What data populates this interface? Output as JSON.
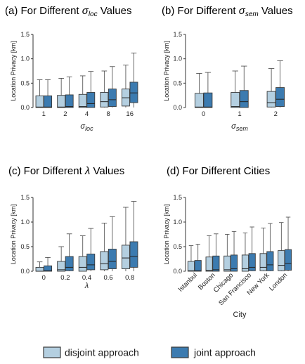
{
  "legend": {
    "disjoint_label": "disjoint approach",
    "joint_label": "joint approach",
    "disjoint_color": "#b4cfe0",
    "joint_color": "#3c7bb0",
    "edge_color": "#3a3a3a"
  },
  "chart_data": [
    {
      "type": "boxplot",
      "title": "(a) For Different σloc Values",
      "title_prefix": "(a) For Different ",
      "title_symbol": "σ",
      "title_sub": "loc",
      "title_suffix": " Values",
      "ylabel": "Location Privacy [km]",
      "xlabel": "σ",
      "xlabel_sub": "loc",
      "ylim": [
        0,
        1.5
      ],
      "yticks": [
        "0.0",
        "0.5",
        "1.0",
        "1.5"
      ],
      "categories": [
        "1",
        "2",
        "4",
        "8",
        "16"
      ],
      "series": [
        {
          "name": "disjoint approach",
          "boxes": [
            {
              "whislo": 0,
              "q1": 0,
              "med": 0.01,
              "q3": 0.24,
              "whishi": 0.57
            },
            {
              "whislo": 0,
              "q1": 0,
              "med": 0.01,
              "q3": 0.25,
              "whishi": 0.6
            },
            {
              "whislo": 0,
              "q1": 0,
              "med": 0.02,
              "q3": 0.27,
              "whishi": 0.65
            },
            {
              "whislo": 0,
              "q1": 0.01,
              "med": 0.12,
              "q3": 0.31,
              "whishi": 0.75
            },
            {
              "whislo": 0,
              "q1": 0.03,
              "med": 0.2,
              "q3": 0.38,
              "whishi": 0.87
            }
          ]
        },
        {
          "name": "joint approach",
          "boxes": [
            {
              "whislo": 0,
              "q1": 0,
              "med": 0.01,
              "q3": 0.24,
              "whishi": 0.57
            },
            {
              "whislo": 0,
              "q1": 0,
              "med": 0.02,
              "q3": 0.26,
              "whishi": 0.63
            },
            {
              "whislo": 0,
              "q1": 0,
              "med": 0.08,
              "q3": 0.31,
              "whishi": 0.74
            },
            {
              "whislo": 0,
              "q1": 0.02,
              "med": 0.16,
              "q3": 0.38,
              "whishi": 0.84
            },
            {
              "whislo": 0,
              "q1": 0.1,
              "med": 0.3,
              "q3": 0.52,
              "whishi": 1.12
            }
          ]
        }
      ]
    },
    {
      "type": "boxplot",
      "title": "(b) For Different σsem Values",
      "title_prefix": "(b) For Different ",
      "title_symbol": "σ",
      "title_sub": "sem",
      "title_suffix": " Values",
      "ylabel": "Location Privacy [km]",
      "xlabel": "σ",
      "xlabel_sub": "sem",
      "ylim": [
        0,
        1.5
      ],
      "yticks": [
        "0.0",
        "0.5",
        "1.0",
        "1.5"
      ],
      "categories": [
        "0",
        "1",
        "2"
      ],
      "series": [
        {
          "name": "disjoint approach",
          "boxes": [
            {
              "whislo": 0,
              "q1": 0,
              "med": 0.01,
              "q3": 0.29,
              "whishi": 0.7
            },
            {
              "whislo": 0,
              "q1": 0,
              "med": 0.02,
              "q3": 0.31,
              "whishi": 0.75
            },
            {
              "whislo": 0,
              "q1": 0.01,
              "med": 0.1,
              "q3": 0.33,
              "whishi": 0.8
            }
          ]
        },
        {
          "name": "joint approach",
          "boxes": [
            {
              "whislo": 0,
              "q1": 0,
              "med": 0.01,
              "q3": 0.3,
              "whishi": 0.72
            },
            {
              "whislo": 0,
              "q1": 0,
              "med": 0.12,
              "q3": 0.35,
              "whishi": 0.85
            },
            {
              "whislo": 0,
              "q1": 0.02,
              "med": 0.17,
              "q3": 0.41,
              "whishi": 0.96
            }
          ]
        }
      ]
    },
    {
      "type": "boxplot",
      "title": "(c) For Different λ Values",
      "title_prefix": "(c) For Different ",
      "title_symbol": "λ",
      "title_sub": "",
      "title_suffix": " Values",
      "ylabel": "Location Privacy [km]",
      "xlabel": "λ",
      "xlabel_sub": "",
      "ylim": [
        0,
        1.5
      ],
      "yticks": [
        "0.0",
        "0.5",
        "1.0",
        "1.5"
      ],
      "categories": [
        "0",
        "0.2",
        "0.4",
        "0.6",
        "0.8"
      ],
      "series": [
        {
          "name": "disjoint approach",
          "boxes": [
            {
              "whislo": 0,
              "q1": 0,
              "med": 0,
              "q3": 0.08,
              "whishi": 0.19
            },
            {
              "whislo": 0,
              "q1": 0,
              "med": 0.03,
              "q3": 0.2,
              "whishi": 0.5
            },
            {
              "whislo": 0,
              "q1": 0,
              "med": 0.08,
              "q3": 0.3,
              "whishi": 0.72
            },
            {
              "whislo": 0,
              "q1": 0.03,
              "med": 0.15,
              "q3": 0.4,
              "whishi": 0.98
            },
            {
              "whislo": 0,
              "q1": 0.05,
              "med": 0.27,
              "q3": 0.53,
              "whishi": 1.3
            }
          ]
        },
        {
          "name": "joint approach",
          "boxes": [
            {
              "whislo": 0,
              "q1": 0,
              "med": 0.01,
              "q3": 0.11,
              "whishi": 0.28
            },
            {
              "whislo": 0,
              "q1": 0.01,
              "med": 0.08,
              "q3": 0.3,
              "whishi": 0.76
            },
            {
              "whislo": 0,
              "q1": 0.03,
              "med": 0.13,
              "q3": 0.35,
              "whishi": 0.87
            },
            {
              "whislo": 0,
              "q1": 0.05,
              "med": 0.2,
              "q3": 0.45,
              "whishi": 1.11
            },
            {
              "whislo": 0,
              "q1": 0.08,
              "med": 0.3,
              "q3": 0.6,
              "whishi": 1.42
            }
          ]
        }
      ]
    },
    {
      "type": "boxplot",
      "title": "(d) For Different Cities",
      "title_prefix": "(d) For Different Cities",
      "title_symbol": "",
      "title_sub": "",
      "title_suffix": "",
      "ylabel": "Location Privacy [km]",
      "xlabel": "City",
      "xlabel_sub": "",
      "ylim": [
        0,
        1.5
      ],
      "yticks": [
        "0.0",
        "0.5",
        "1.0",
        "1.5"
      ],
      "categories": [
        "Istanbul",
        "Boston",
        "Chicago",
        "San Francisco",
        "New York",
        "London"
      ],
      "series": [
        {
          "name": "disjoint approach",
          "boxes": [
            {
              "whislo": 0,
              "q1": 0,
              "med": 0.01,
              "q3": 0.2,
              "whishi": 0.52
            },
            {
              "whislo": 0,
              "q1": 0,
              "med": 0.02,
              "q3": 0.29,
              "whishi": 0.72
            },
            {
              "whislo": 0,
              "q1": 0,
              "med": 0.03,
              "q3": 0.31,
              "whishi": 0.75
            },
            {
              "whislo": 0,
              "q1": 0,
              "med": 0.05,
              "q3": 0.33,
              "whishi": 0.78
            },
            {
              "whislo": 0,
              "q1": 0.01,
              "med": 0.08,
              "q3": 0.36,
              "whishi": 0.88
            },
            {
              "whislo": 0,
              "q1": 0.01,
              "med": 0.12,
              "q3": 0.42,
              "whishi": 0.99
            }
          ]
        },
        {
          "name": "joint approach",
          "boxes": [
            {
              "whislo": 0,
              "q1": 0,
              "med": 0.01,
              "q3": 0.22,
              "whishi": 0.55
            },
            {
              "whislo": 0,
              "q1": 0,
              "med": 0.03,
              "q3": 0.31,
              "whishi": 0.76
            },
            {
              "whislo": 0,
              "q1": 0,
              "med": 0.05,
              "q3": 0.33,
              "whishi": 0.81
            },
            {
              "whislo": 0,
              "q1": 0.01,
              "med": 0.08,
              "q3": 0.36,
              "whishi": 0.9
            },
            {
              "whislo": 0,
              "q1": 0.01,
              "med": 0.13,
              "q3": 0.4,
              "whishi": 0.97
            },
            {
              "whislo": 0,
              "q1": 0.02,
              "med": 0.16,
              "q3": 0.44,
              "whishi": 1.1
            }
          ]
        }
      ]
    }
  ]
}
